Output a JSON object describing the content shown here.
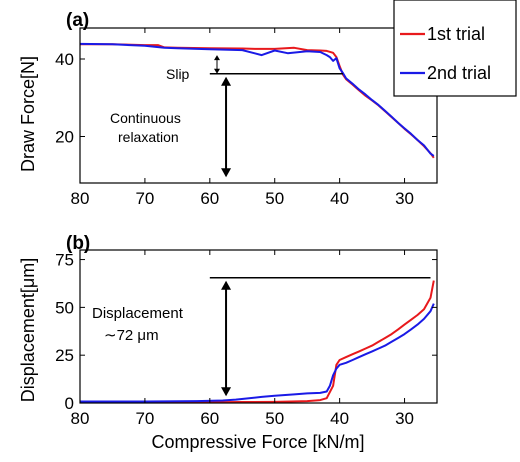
{
  "chart_data": [
    {
      "type": "line",
      "panel_label": "(a)",
      "xlabel": "",
      "ylabel": "Draw Force[N]",
      "xlim": [
        80,
        25
      ],
      "ylim": [
        8,
        48
      ],
      "xticks": [
        "80",
        "70",
        "60",
        "50",
        "40",
        "30"
      ],
      "yticks": [
        "20",
        "40"
      ],
      "grid": false,
      "legend_position": "top-right",
      "series": [
        {
          "name": "1st trial",
          "color": "#e8191c",
          "x": [
            80,
            75,
            70,
            68,
            67,
            65,
            60,
            55,
            53,
            50,
            47,
            45,
            43,
            42,
            41,
            40.5,
            40,
            39.5,
            39,
            38,
            37,
            36,
            35,
            34,
            33,
            32,
            31,
            30,
            29,
            28,
            27,
            26,
            25.5
          ],
          "y": [
            43.8,
            43.8,
            43.6,
            43.6,
            43.0,
            42.9,
            42.8,
            42.7,
            42.6,
            42.6,
            42.9,
            42.3,
            42.2,
            42.1,
            41.6,
            40.5,
            38.2,
            36.0,
            34.8,
            33.4,
            31.9,
            30.5,
            29.3,
            28.0,
            26.5,
            25.0,
            23.5,
            22.0,
            20.6,
            19.1,
            17.5,
            15.7,
            14.5
          ]
        },
        {
          "name": "2nd trial",
          "color": "#1a1ae6",
          "x": [
            80,
            75,
            70,
            67,
            65,
            60,
            55,
            52,
            50,
            48,
            45,
            43,
            42,
            41.5,
            41,
            40.5,
            40,
            39.5,
            39,
            38,
            37,
            36,
            35,
            34,
            33,
            32,
            31,
            30,
            29,
            28,
            27,
            26,
            25.5
          ],
          "y": [
            43.9,
            43.8,
            43.4,
            42.9,
            42.8,
            42.5,
            42.3,
            41.0,
            42.2,
            41.5,
            42.0,
            41.8,
            41.0,
            40.5,
            39.5,
            40.2,
            37.6,
            36.4,
            35.0,
            33.6,
            32.1,
            30.8,
            29.4,
            28.1,
            26.6,
            25.1,
            23.5,
            22.1,
            20.7,
            19.1,
            17.7,
            15.6,
            15.0
          ]
        }
      ],
      "annotations": {
        "slip_label": "Slip",
        "relaxation_label_line1": "Continuous",
        "relaxation_label_line2": "relaxation",
        "reference_level": 36.2,
        "reference_x_from": 60,
        "reference_x_to": 39.5,
        "slip_from": 41.0,
        "arrow_x": 57.5,
        "arrow_bottom": 9.5
      }
    },
    {
      "type": "line",
      "panel_label": "(b)",
      "xlabel": "Compressive Force [kN/m]",
      "ylabel": "Displacement[μm]",
      "xlim": [
        80,
        25
      ],
      "ylim": [
        0,
        80
      ],
      "xticks": [
        "80",
        "70",
        "60",
        "50",
        "40",
        "30"
      ],
      "yticks": [
        "0",
        "25",
        "50",
        "75"
      ],
      "grid": false,
      "legend_position": "",
      "series": [
        {
          "name": "1st trial",
          "color": "#e8191c",
          "x": [
            80,
            70,
            60,
            55,
            50,
            45,
            43,
            42,
            41,
            40.5,
            40,
            39,
            38,
            37,
            36,
            35,
            34,
            33,
            32,
            31,
            30,
            29,
            28,
            27,
            26,
            25.5
          ],
          "y": [
            0.3,
            0.3,
            0.4,
            0.5,
            0.6,
            1.0,
            1.5,
            2.5,
            9.0,
            20.0,
            22.5,
            24.0,
            25.5,
            27.0,
            28.5,
            30.0,
            32.0,
            34.0,
            36.0,
            38.5,
            41.0,
            43.5,
            46.0,
            49.0,
            55.0,
            64.0
          ]
        },
        {
          "name": "2nd trial",
          "color": "#1a1ae6",
          "x": [
            80,
            70,
            62,
            58,
            56,
            52,
            50,
            47,
            45,
            43,
            42,
            41.5,
            41,
            40.5,
            40,
            39,
            38,
            37,
            36,
            35,
            34,
            33,
            32,
            31,
            30,
            29,
            28,
            27,
            26,
            25.5
          ],
          "y": [
            0.8,
            0.8,
            1.0,
            1.3,
            1.8,
            3.2,
            3.8,
            4.5,
            5.0,
            5.3,
            6.0,
            9.0,
            14.5,
            18.0,
            20.0,
            21.0,
            22.5,
            24.0,
            25.5,
            27.0,
            28.5,
            30.0,
            32.0,
            34.0,
            36.0,
            38.5,
            41.0,
            44.0,
            48.0,
            52.0
          ]
        }
      ],
      "annotations": {
        "displacement_label": "Displacement",
        "displacement_value": "∼72 μm",
        "reference_level": 65.5,
        "reference_x_from": 60,
        "reference_x_to": 26,
        "arrow_x": 57.5,
        "arrow_bottom": 3.5
      }
    }
  ]
}
